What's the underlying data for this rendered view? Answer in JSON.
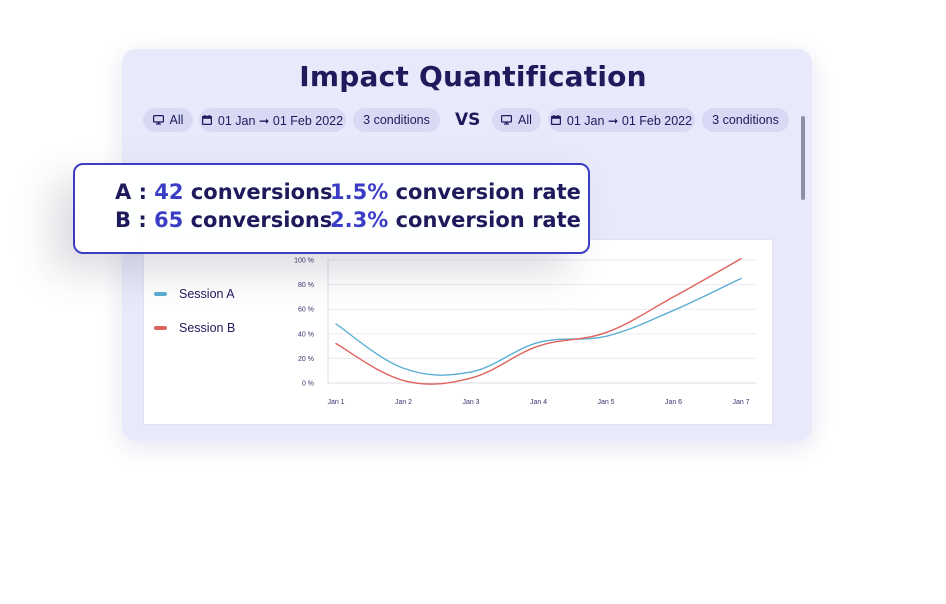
{
  "title": "Impact Quantification",
  "left_filters": {
    "device": "All",
    "date_range": "01 Jan ➞ 01 Feb 2022",
    "conditions": "3 conditions"
  },
  "vs_label": "VS",
  "right_filters": {
    "device": "All",
    "date_range": "01 Jan ➞ 01 Feb 2022",
    "conditions": "3 conditions"
  },
  "summary": {
    "a": {
      "label": "A :",
      "count": "42",
      "count_suffix": "conversions",
      "rate": "1.5%",
      "rate_suffix": "conversion rate"
    },
    "b": {
      "label": "B :",
      "count": "65",
      "count_suffix": "conversions",
      "rate": "2.3%",
      "rate_suffix": "conversion rate"
    }
  },
  "legend": [
    {
      "name": "Session A",
      "color": "#5aaed3"
    },
    {
      "name": "Session B",
      "color": "#e0625c"
    }
  ],
  "icons": {
    "device": "monitor-icon",
    "date": "calendar-icon"
  },
  "chart_data": {
    "type": "line",
    "x": [
      "Jan 1",
      "Jan 2",
      "Jan 3",
      "Jan 4",
      "Jan 5",
      "Jan 6",
      "Jan 7"
    ],
    "ylim": [
      0,
      100
    ],
    "yticks": [
      "0 %",
      "20 %",
      "40 %",
      "60 %",
      "80 %",
      "100 %"
    ],
    "grid": true,
    "legend_position": "left",
    "series": [
      {
        "name": "Session A",
        "color": "#5aaed3",
        "values": [
          48,
          12,
          9,
          33,
          38,
          59,
          85
        ]
      },
      {
        "name": "Session B",
        "color": "#e0625c",
        "values": [
          32,
          2,
          4,
          30,
          41,
          70,
          101
        ]
      }
    ]
  }
}
